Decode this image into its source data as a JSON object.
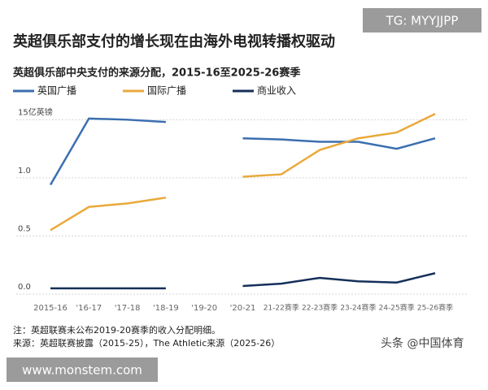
{
  "chart_data": {
    "type": "line",
    "title": "英超俱乐部支付的增长现在由海外电视转播权驱动",
    "subtitle": "英超俱乐部中央支付的来源分配，2015-16至2025-26赛季",
    "categories": [
      "2015-16",
      "'16-17",
      "'17-18",
      "'18-19",
      "'19-20",
      "'20-21",
      "21-22赛季",
      "22-23赛季",
      "23-24赛季",
      "24-25赛季",
      "25-26赛季"
    ],
    "series": [
      {
        "name": "英国广播",
        "color": "#3b6fb0",
        "values": [
          0.94,
          1.51,
          1.5,
          1.48,
          null,
          1.34,
          1.33,
          1.31,
          1.31,
          1.25,
          1.34
        ]
      },
      {
        "name": "国际广播",
        "color": "#e9a93b",
        "values": [
          0.55,
          0.75,
          0.78,
          0.83,
          null,
          1.01,
          1.03,
          1.24,
          1.34,
          1.39,
          1.55
        ]
      },
      {
        "name": "商业收入",
        "color": "#15305a",
        "values": [
          0.05,
          0.05,
          0.05,
          0.05,
          null,
          0.07,
          0.09,
          0.14,
          0.11,
          0.1,
          0.18
        ]
      }
    ],
    "ylim": [
      0,
      1.6
    ],
    "yticks": [
      {
        "value": 0,
        "label": "0.0"
      },
      {
        "value": 0.5,
        "label": "0.5"
      },
      {
        "value": 1,
        "label": "1.0"
      },
      {
        "value": 1.5,
        "label": "15亿英镑"
      }
    ],
    "grid": true,
    "notes": [
      "注：英超联赛未公布2019-20赛季的收入分配明细。",
      "来源：英超联赛披露（2015-25），The Athletic来源（2025-26）"
    ]
  },
  "watermarks": {
    "top": "TG: MYYJJPP",
    "site": "www.monstem.com",
    "source": "头条 @中国体育"
  }
}
